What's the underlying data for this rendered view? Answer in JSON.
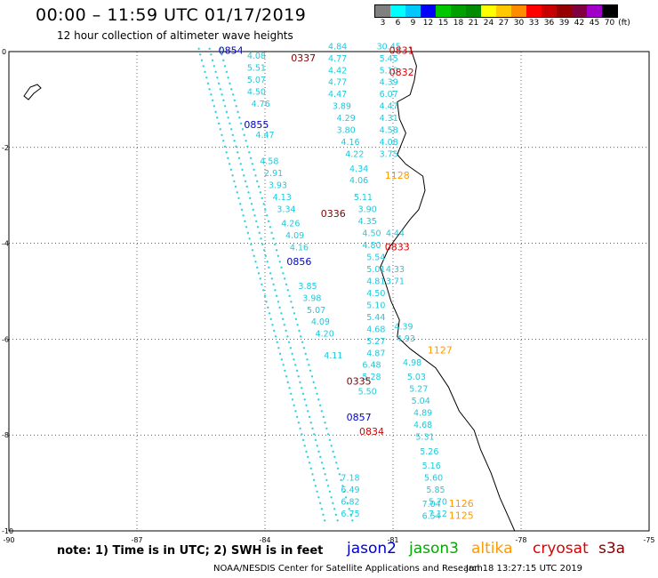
{
  "header": {
    "title": "00:00 – 11:59 UTC 01/17/2019",
    "subtitle": "12 hour collection of altimeter wave heights"
  },
  "legend": {
    "unit": "(ft)",
    "bins": [
      {
        "label": "3",
        "color": "#808080"
      },
      {
        "label": "6",
        "color": "#00ffff"
      },
      {
        "label": "9",
        "color": "#00c8ff"
      },
      {
        "label": "12",
        "color": "#0000ff"
      },
      {
        "label": "15",
        "color": "#00c800"
      },
      {
        "label": "18",
        "color": "#00a000"
      },
      {
        "label": "21",
        "color": "#008c00"
      },
      {
        "label": "24",
        "color": "#ffff00"
      },
      {
        "label": "27",
        "color": "#ffc800"
      },
      {
        "label": "30",
        "color": "#ff8c00"
      },
      {
        "label": "33",
        "color": "#ff0000"
      },
      {
        "label": "36",
        "color": "#c80000"
      },
      {
        "label": "39",
        "color": "#960000"
      },
      {
        "label": "42",
        "color": "#800040"
      },
      {
        "label": "45",
        "color": "#a000c8"
      },
      {
        "label": "70",
        "color": "#000000"
      }
    ]
  },
  "map": {
    "lon_range": [
      -90,
      -75
    ],
    "lat_range": [
      -10,
      0
    ],
    "lon_ticks": [
      "-90",
      "-87",
      "-84",
      "-81",
      "-78",
      "-75"
    ],
    "lat_ticks": [
      "0",
      "-2",
      "-4",
      "-6",
      "-8",
      "-10"
    ],
    "track_labels": [
      {
        "text": "0854",
        "lon": -84.8,
        "lat": -0.05,
        "color": "#0000cc"
      },
      {
        "text": "0337",
        "lon": -83.1,
        "lat": -0.2,
        "color": "#800000"
      },
      {
        "text": "0831",
        "lon": -80.8,
        "lat": -0.05,
        "color": "#dd0000"
      },
      {
        "text": "0832",
        "lon": -80.8,
        "lat": -0.5,
        "color": "#dd0000"
      },
      {
        "text": "0855",
        "lon": -84.2,
        "lat": -1.6,
        "color": "#0000cc"
      },
      {
        "text": "1128",
        "lon": -80.9,
        "lat": -2.65,
        "color": "#ff9900"
      },
      {
        "text": "0336",
        "lon": -82.4,
        "lat": -3.45,
        "color": "#800000"
      },
      {
        "text": "0833",
        "lon": -80.9,
        "lat": -4.15,
        "color": "#dd0000"
      },
      {
        "text": "0856",
        "lon": -83.2,
        "lat": -4.45,
        "color": "#0000cc"
      },
      {
        "text": "1127",
        "lon": -79.9,
        "lat": -6.3,
        "color": "#ff9900"
      },
      {
        "text": "0335",
        "lon": -81.8,
        "lat": -6.95,
        "color": "#800000"
      },
      {
        "text": "0857",
        "lon": -81.8,
        "lat": -7.7,
        "color": "#0000cc"
      },
      {
        "text": "0834",
        "lon": -81.5,
        "lat": -8.0,
        "color": "#dd0000"
      },
      {
        "text": "1126",
        "lon": -79.4,
        "lat": -9.5,
        "color": "#ff9900"
      },
      {
        "text": "1125",
        "lon": -79.4,
        "lat": -9.75,
        "color": "#ff9900"
      }
    ],
    "wave_heights": [
      {
        "text": "4.08",
        "lon": -84.2,
        "lat": -0.15
      },
      {
        "text": "5.51",
        "lon": -84.2,
        "lat": -0.4
      },
      {
        "text": "5.07",
        "lon": -84.2,
        "lat": -0.65
      },
      {
        "text": "4.50",
        "lon": -84.2,
        "lat": -0.9
      },
      {
        "text": "4.76",
        "lon": -84.1,
        "lat": -1.15
      },
      {
        "text": "4.47",
        "lon": -84.0,
        "lat": -1.8
      },
      {
        "text": "4.58",
        "lon": -83.9,
        "lat": -2.35
      },
      {
        "text": "2.91",
        "lon": -83.8,
        "lat": -2.6
      },
      {
        "text": "3.93",
        "lon": -83.7,
        "lat": -2.85
      },
      {
        "text": "4.13",
        "lon": -83.6,
        "lat": -3.1
      },
      {
        "text": "3.34",
        "lon": -83.5,
        "lat": -3.35
      },
      {
        "text": "4.26",
        "lon": -83.4,
        "lat": -3.65
      },
      {
        "text": "4.09",
        "lon": -83.3,
        "lat": -3.9
      },
      {
        "text": "4.16",
        "lon": -83.2,
        "lat": -4.15
      },
      {
        "text": "3.85",
        "lon": -83.0,
        "lat": -4.95
      },
      {
        "text": "3.98",
        "lon": -82.9,
        "lat": -5.2
      },
      {
        "text": "5.07",
        "lon": -82.8,
        "lat": -5.45
      },
      {
        "text": "4.09",
        "lon": -82.7,
        "lat": -5.7
      },
      {
        "text": "4.20",
        "lon": -82.6,
        "lat": -5.95
      },
      {
        "text": "4.11",
        "lon": -82.4,
        "lat": -6.4
      },
      {
        "text": "4.84",
        "lon": -82.3,
        "lat": 0.05
      },
      {
        "text": "4.77",
        "lon": -82.3,
        "lat": -0.2
      },
      {
        "text": "4.42",
        "lon": -82.3,
        "lat": -0.45
      },
      {
        "text": "4.77",
        "lon": -82.3,
        "lat": -0.7
      },
      {
        "text": "4.47",
        "lon": -82.3,
        "lat": -0.95
      },
      {
        "text": "3.89",
        "lon": -82.2,
        "lat": -1.2
      },
      {
        "text": "4.29",
        "lon": -82.1,
        "lat": -1.45
      },
      {
        "text": "3.80",
        "lon": -82.1,
        "lat": -1.7
      },
      {
        "text": "4.16",
        "lon": -82.0,
        "lat": -1.95
      },
      {
        "text": "4.22",
        "lon": -81.9,
        "lat": -2.2
      },
      {
        "text": "4.34",
        "lon": -81.8,
        "lat": -2.5
      },
      {
        "text": "4.06",
        "lon": -81.8,
        "lat": -2.75
      },
      {
        "text": "5.11",
        "lon": -81.7,
        "lat": -3.1
      },
      {
        "text": "3.90",
        "lon": -81.6,
        "lat": -3.35
      },
      {
        "text": "4.35",
        "lon": -81.6,
        "lat": -3.6
      },
      {
        "text": "4.50",
        "lon": -81.5,
        "lat": -3.85
      },
      {
        "text": "4.80",
        "lon": -81.5,
        "lat": -4.1
      },
      {
        "text": "5.54",
        "lon": -81.4,
        "lat": -4.35
      },
      {
        "text": "5.01",
        "lon": -81.4,
        "lat": -4.6
      },
      {
        "text": "4.81",
        "lon": -81.4,
        "lat": -4.85
      },
      {
        "text": "4.50",
        "lon": -81.4,
        "lat": -5.1
      },
      {
        "text": "5.10",
        "lon": -81.4,
        "lat": -5.35
      },
      {
        "text": "5.44",
        "lon": -81.4,
        "lat": -5.6
      },
      {
        "text": "4.68",
        "lon": -81.4,
        "lat": -5.85
      },
      {
        "text": "5.27",
        "lon": -81.4,
        "lat": -6.1
      },
      {
        "text": "4.87",
        "lon": -81.4,
        "lat": -6.35
      },
      {
        "text": "6.48",
        "lon": -81.5,
        "lat": -6.6
      },
      {
        "text": "5.28",
        "lon": -81.5,
        "lat": -6.85
      },
      {
        "text": "5.50",
        "lon": -81.6,
        "lat": -7.15
      },
      {
        "text": "30.45",
        "lon": -81.1,
        "lat": 0.05
      },
      {
        "text": "5.45",
        "lon": -81.1,
        "lat": -0.2
      },
      {
        "text": "5.10",
        "lon": -81.1,
        "lat": -0.45
      },
      {
        "text": "4.39",
        "lon": -81.1,
        "lat": -0.7
      },
      {
        "text": "6.07",
        "lon": -81.1,
        "lat": -0.95
      },
      {
        "text": "4.47",
        "lon": -81.1,
        "lat": -1.2
      },
      {
        "text": "4.31",
        "lon": -81.1,
        "lat": -1.45
      },
      {
        "text": "4.58",
        "lon": -81.1,
        "lat": -1.7
      },
      {
        "text": "4.08",
        "lon": -81.1,
        "lat": -1.95
      },
      {
        "text": "3.75",
        "lon": -81.1,
        "lat": -2.2
      },
      {
        "text": "4.44",
        "lon": -80.95,
        "lat": -3.85
      },
      {
        "text": "4.33",
        "lon": -80.95,
        "lat": -4.6
      },
      {
        "text": "3.71",
        "lon": -80.95,
        "lat": -4.85
      },
      {
        "text": "4.39",
        "lon": -80.75,
        "lat": -5.8
      },
      {
        "text": "4.93",
        "lon": -80.7,
        "lat": -6.05
      },
      {
        "text": "4.98",
        "lon": -80.55,
        "lat": -6.55
      },
      {
        "text": "5.03",
        "lon": -80.45,
        "lat": -6.85
      },
      {
        "text": "5.27",
        "lon": -80.4,
        "lat": -7.1
      },
      {
        "text": "5.04",
        "lon": -80.35,
        "lat": -7.35
      },
      {
        "text": "4.89",
        "lon": -80.3,
        "lat": -7.6
      },
      {
        "text": "4.68",
        "lon": -80.3,
        "lat": -7.85
      },
      {
        "text": "5.31",
        "lon": -80.25,
        "lat": -8.1
      },
      {
        "text": "5.26",
        "lon": -80.15,
        "lat": -8.4
      },
      {
        "text": "5.16",
        "lon": -80.1,
        "lat": -8.7
      },
      {
        "text": "5.60",
        "lon": -80.05,
        "lat": -8.95
      },
      {
        "text": "5.85",
        "lon": -80.0,
        "lat": -9.2
      },
      {
        "text": "5.70",
        "lon": -79.95,
        "lat": -9.45
      },
      {
        "text": "7.12",
        "lon": -79.95,
        "lat": -9.7
      },
      {
        "text": "7.04",
        "lon": -80.1,
        "lat": -9.5
      },
      {
        "text": "6.54",
        "lon": -80.1,
        "lat": -9.75
      },
      {
        "text": "7.18",
        "lon": -82.0,
        "lat": -8.95
      },
      {
        "text": "6.49",
        "lon": -82.0,
        "lat": -9.2
      },
      {
        "text": "6.82",
        "lon": -82.0,
        "lat": -9.45
      },
      {
        "text": "6.75",
        "lon": -82.0,
        "lat": -9.7
      }
    ]
  },
  "footer": {
    "note": "note:  1) Time is in UTC;  2) SWH is in feet",
    "satellites": [
      {
        "name": "jason2",
        "color": "#0000cc"
      },
      {
        "name": "jason3",
        "color": "#00aa00"
      },
      {
        "name": "altika",
        "color": "#ff9900"
      },
      {
        "name": "cryosat",
        "color": "#dd0000"
      },
      {
        "name": "s3a",
        "color": "#800000"
      }
    ],
    "credit": "NOAA/NESDIS Center for Satellite Applications and Research",
    "generated": "Jan 18 13:27:15 UTC 2019"
  }
}
